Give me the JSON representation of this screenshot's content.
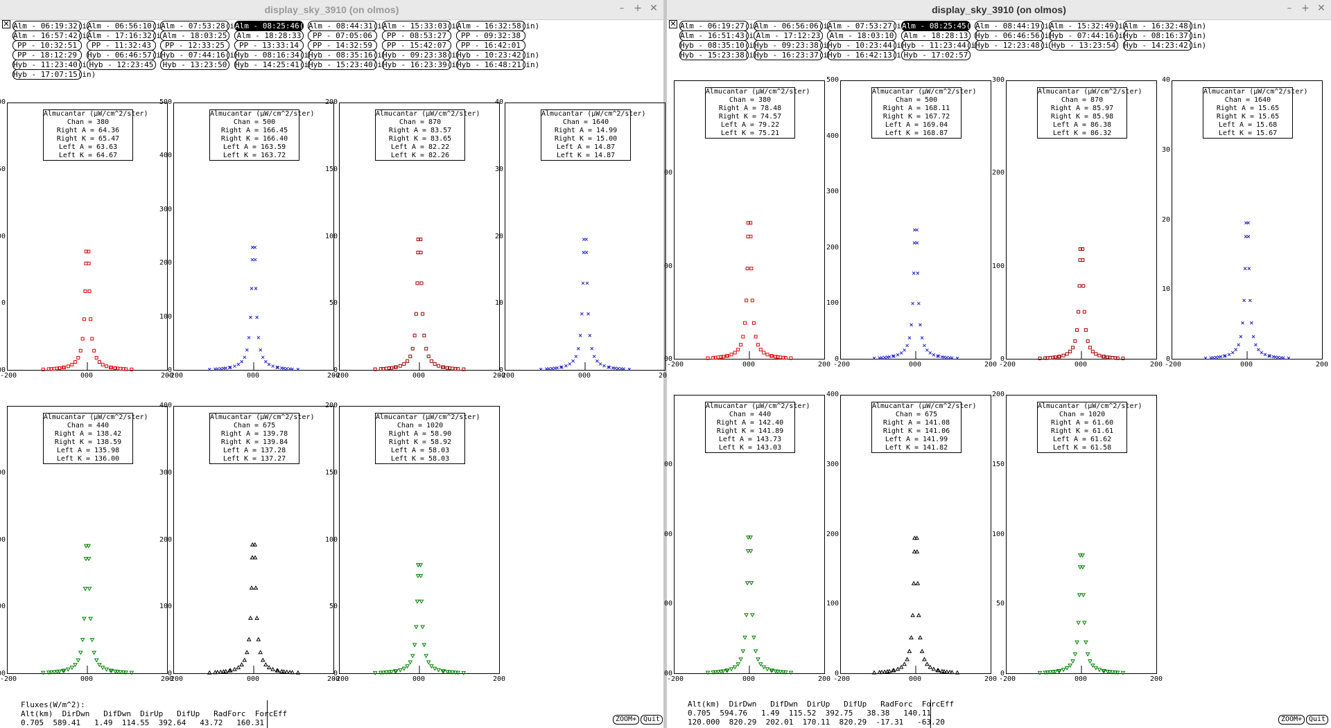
{
  "windows": [
    {
      "id": "left",
      "title": "display_sky_3910 (on olmos)",
      "buttons": [
        {
          "label": "Alm - 06:19:32(in)",
          "selected": false
        },
        {
          "label": "Alm - 06:56:10(in)",
          "selected": false
        },
        {
          "label": "Alm - 07:53:28(in)",
          "selected": false
        },
        {
          "label": "Alm - 08:25:46(in)",
          "selected": true
        },
        {
          "label": "Alm - 08:44:31(in)",
          "selected": false
        },
        {
          "label": "Alm - 15:33:03(in)",
          "selected": false
        },
        {
          "label": "Alm - 16:32:58(in)",
          "selected": false
        },
        {
          "label": "Alm - 16:57:42(in)",
          "selected": false
        },
        {
          "label": "Alm - 17:16:32(in)",
          "selected": false
        },
        {
          "label": "Alm - 18:03:25",
          "selected": false
        },
        {
          "label": "Alm - 18:28:33",
          "selected": false
        },
        {
          "label": "PP - 07:05:06",
          "selected": false
        },
        {
          "label": "PP - 08:53:27",
          "selected": false
        },
        {
          "label": "PP - 09:32:38",
          "selected": false
        },
        {
          "label": "PP - 10:32:51",
          "selected": false
        },
        {
          "label": "PP - 11:32:43",
          "selected": false
        },
        {
          "label": "PP - 12:33:25",
          "selected": false
        },
        {
          "label": "PP - 13:33:14",
          "selected": false
        },
        {
          "label": "PP - 14:32:59",
          "selected": false
        },
        {
          "label": "PP - 15:42:07",
          "selected": false
        },
        {
          "label": "PP - 16:42:01",
          "selected": false
        },
        {
          "label": "PP - 18:12:29",
          "selected": false
        },
        {
          "label": "Hyb - 06:46:57(in)",
          "selected": false
        },
        {
          "label": "Hyb - 07:44:16(in)",
          "selected": false
        },
        {
          "label": "Hyb - 08:16:34(in)",
          "selected": false
        },
        {
          "label": "Hyb - 08:35:16(in)",
          "selected": false
        },
        {
          "label": "Hyb - 09:23:38(in)",
          "selected": false
        },
        {
          "label": "Hyb - 10:23:42(in)",
          "selected": false
        },
        {
          "label": "Hyb - 11:23:40(in)",
          "selected": false
        },
        {
          "label": "Hyb - 12:23:45",
          "selected": false
        },
        {
          "label": "Hyb - 13:23:50",
          "selected": false
        },
        {
          "label": "Hyb - 14:25:41(in)",
          "selected": false
        },
        {
          "label": "Hyb - 15:23:40(in)",
          "selected": false
        },
        {
          "label": "Hyb - 16:23:39(in)",
          "selected": false
        },
        {
          "label": "Hyb - 16:48:21(in)",
          "selected": false
        },
        {
          "label": "Hyb - 17:07:15(in)",
          "selected": false
        }
      ],
      "plots": [
        {
          "chan": "380",
          "right_a": "64.36",
          "right_k": "65.47",
          "left_a": "63.63",
          "left_k": "64.67",
          "color": "#e00000",
          "marker": "square",
          "yticks": [
            {
              "v": 0,
              "t": "00"
            },
            {
              "v": 50,
              "t": "0"
            },
            {
              "v": 100,
              "t": "00"
            },
            {
              "v": 150,
              "t": "50"
            },
            {
              "v": 200,
              "t": "200"
            }
          ],
          "ymax": 200
        },
        {
          "chan": "500",
          "right_a": "166.45",
          "right_k": "166.40",
          "left_a": "163.59",
          "left_k": "163.72",
          "color": "#2020d0",
          "marker": "x",
          "yticks": [
            {
              "v": 0,
              "t": "0"
            },
            {
              "v": 100,
              "t": "100"
            },
            {
              "v": 200,
              "t": "200"
            },
            {
              "v": 300,
              "t": "300"
            },
            {
              "v": 400,
              "t": "400"
            },
            {
              "v": 500,
              "t": "500"
            }
          ],
          "ymax": 500
        },
        {
          "chan": "870",
          "right_a": "83.57",
          "right_k": "83.65",
          "left_a": "82.22",
          "left_k": "82.26",
          "color": "#a00000",
          "marker": "square",
          "yticks": [
            {
              "v": 0,
              "t": "0"
            },
            {
              "v": 50,
              "t": "50"
            },
            {
              "v": 100,
              "t": "100"
            },
            {
              "v": 150,
              "t": "150"
            },
            {
              "v": 200,
              "t": "200"
            }
          ],
          "ymax": 200
        },
        {
          "chan": "1640",
          "right_a": "14.99",
          "right_k": "15.00",
          "left_a": "14.87",
          "left_k": "14.87",
          "color": "#2020d0",
          "marker": "x",
          "yticks": [
            {
              "v": 0,
              "t": "0"
            },
            {
              "v": 10,
              "t": "10"
            },
            {
              "v": 20,
              "t": "20"
            },
            {
              "v": 30,
              "t": "30"
            },
            {
              "v": 40,
              "t": "40"
            }
          ],
          "ymax": 40
        },
        {
          "chan": "440",
          "right_a": "138.42",
          "right_k": "138.59",
          "left_a": "135.98",
          "left_k": "136.00",
          "color": "#008000",
          "marker": "tridown",
          "yticks": [
            {
              "v": 0,
              "t": "00"
            },
            {
              "v": 100,
              "t": "00"
            },
            {
              "v": 200,
              "t": "00"
            },
            {
              "v": 300,
              "t": "00"
            }
          ],
          "ymax": 400
        },
        {
          "chan": "675",
          "right_a": "139.78",
          "right_k": "139.84",
          "left_a": "137.28",
          "left_k": "137.27",
          "color": "#000000",
          "marker": "triup",
          "yticks": [
            {
              "v": 0,
              "t": "0"
            },
            {
              "v": 100,
              "t": "100"
            },
            {
              "v": 200,
              "t": "200"
            },
            {
              "v": 300,
              "t": "300"
            },
            {
              "v": 400,
              "t": "400"
            }
          ],
          "ymax": 400
        },
        {
          "chan": "1020",
          "right_a": "58.90",
          "right_k": "58.92",
          "left_a": "58.03",
          "left_k": "58.03",
          "color": "#008000",
          "marker": "tridown",
          "yticks": [
            {
              "v": 0,
              "t": "0"
            },
            {
              "v": 50,
              "t": "50"
            },
            {
              "v": 100,
              "t": "100"
            },
            {
              "v": 150,
              "t": "150"
            },
            {
              "v": 200,
              "t": "200"
            }
          ],
          "ymax": 200
        }
      ],
      "flux_text": "Fluxes(W/m^2):\nAlt(km)  DirDwn   DifDwn  DirUp   DifUp   RadForc  ForcEff\n0.705  589.41   1.49  114.55  392.64   43.72   160.31"
    },
    {
      "id": "right",
      "title": "display_sky_3910 (on olmos)",
      "buttons": [
        {
          "label": "Alm - 06:19:27(in)",
          "selected": false
        },
        {
          "label": "Alm - 06:56:06(in)",
          "selected": false
        },
        {
          "label": "Alm - 07:53:27(in)",
          "selected": false
        },
        {
          "label": "Alm - 08:25:45(in)",
          "selected": true
        },
        {
          "label": "Alm - 08:44:19(in)",
          "selected": false
        },
        {
          "label": "Alm - 15:32:49(in)",
          "selected": false
        },
        {
          "label": "Alm - 16:32:48(in)",
          "selected": false
        },
        {
          "label": "Alm - 16:51:43(in)",
          "selected": false
        },
        {
          "label": "Alm - 17:12:23",
          "selected": false
        },
        {
          "label": "Alm - 18:03:10",
          "selected": false
        },
        {
          "label": "Alm - 18:28:13",
          "selected": false
        },
        {
          "label": "Hyb - 06:46:56(in)",
          "selected": false
        },
        {
          "label": "Hyb - 07:44:16(in)",
          "selected": false
        },
        {
          "label": "Hyb - 08:16:37(in)",
          "selected": false
        },
        {
          "label": "Hyb - 08:35:10(in)",
          "selected": false
        },
        {
          "label": "Hyb - 09:23:38(in)",
          "selected": false
        },
        {
          "label": "Hyb - 10:23:44(in)",
          "selected": false
        },
        {
          "label": "Hyb - 11:23:44(in)",
          "selected": false
        },
        {
          "label": "Hyb - 12:23:48(in)",
          "selected": false
        },
        {
          "label": "Hyb - 13:23:54",
          "selected": false
        },
        {
          "label": "Hyb - 14:23:42(in)",
          "selected": false
        },
        {
          "label": "Hyb - 15:23:38(in)",
          "selected": false
        },
        {
          "label": "Hyb - 16:23:37(in)",
          "selected": false
        },
        {
          "label": "Hyb - 16:42:13(in)",
          "selected": false
        },
        {
          "label": "Hyb - 17:02:57",
          "selected": false
        }
      ],
      "plots": [
        {
          "chan": "380",
          "right_a": "78.48",
          "right_k": "74.57",
          "left_a": "79.22",
          "left_k": "75.21",
          "color": "#e00000",
          "marker": "square",
          "yticks": [
            {
              "v": 0,
              "t": "00"
            },
            {
              "v": 50,
              "t": "00"
            },
            {
              "v": 100,
              "t": "00"
            }
          ],
          "ymax": 150
        },
        {
          "chan": "500",
          "right_a": "168.11",
          "right_k": "167.72",
          "left_a": "169.04",
          "left_k": "168.87",
          "color": "#2020d0",
          "marker": "x",
          "yticks": [
            {
              "v": 0,
              "t": "0"
            },
            {
              "v": 100,
              "t": "100"
            },
            {
              "v": 200,
              "t": "200"
            },
            {
              "v": 300,
              "t": "300"
            },
            {
              "v": 400,
              "t": "400"
            },
            {
              "v": 500,
              "t": "500"
            }
          ],
          "ymax": 500
        },
        {
          "chan": "870",
          "right_a": "85.97",
          "right_k": "85.98",
          "left_a": "86.38",
          "left_k": "86.32",
          "color": "#a00000",
          "marker": "square",
          "yticks": [
            {
              "v": 0,
              "t": "0"
            },
            {
              "v": 100,
              "t": "100"
            },
            {
              "v": 200,
              "t": "200"
            },
            {
              "v": 300,
              "t": "300"
            }
          ],
          "ymax": 300
        },
        {
          "chan": "1640",
          "right_a": "15.65",
          "right_k": "15.65",
          "left_a": "15.68",
          "left_k": "15.67",
          "color": "#2020d0",
          "marker": "x",
          "yticks": [
            {
              "v": 0,
              "t": "0"
            },
            {
              "v": 10,
              "t": "10"
            },
            {
              "v": 20,
              "t": "20"
            },
            {
              "v": 30,
              "t": "30"
            },
            {
              "v": 40,
              "t": "40"
            }
          ],
          "ymax": 40
        },
        {
          "chan": "440",
          "right_a": "142.40",
          "right_k": "141.89",
          "left_a": "143.73",
          "left_k": "143.03",
          "color": "#008000",
          "marker": "tridown",
          "yticks": [
            {
              "v": 0,
              "t": "00"
            },
            {
              "v": 100,
              "t": "00"
            },
            {
              "v": 200,
              "t": "00"
            },
            {
              "v": 300,
              "t": "00"
            }
          ],
          "ymax": 400
        },
        {
          "chan": "675",
          "right_a": "141.08",
          "right_k": "141.06",
          "left_a": "141.99",
          "left_k": "141.82",
          "color": "#000000",
          "marker": "triup",
          "yticks": [
            {
              "v": 0,
              "t": "0"
            },
            {
              "v": 100,
              "t": "100"
            },
            {
              "v": 200,
              "t": "200"
            },
            {
              "v": 300,
              "t": "300"
            },
            {
              "v": 400,
              "t": "400"
            }
          ],
          "ymax": 400
        },
        {
          "chan": "1020",
          "right_a": "61.60",
          "right_k": "61.61",
          "left_a": "61.62",
          "left_k": "61.58",
          "color": "#008000",
          "marker": "tridown",
          "yticks": [
            {
              "v": 0,
              "t": "0"
            },
            {
              "v": 50,
              "t": "50"
            },
            {
              "v": 100,
              "t": "100"
            },
            {
              "v": 150,
              "t": "150"
            },
            {
              "v": 200,
              "t": "200"
            }
          ],
          "ymax": 200
        }
      ],
      "flux_text": "Alt(km)  DirDwn   DifDwn  DirUp   DifUp   RadForc  ForcEff\n0.705  594.76   1.49  115.52  392.75   38.38   140.11\n120.000  820.29  202.01  170.11  820.29  -17.31   -63.20"
    }
  ],
  "plot_common": {
    "legend_title": "Almucantar (µW/cm^2/ster)",
    "chan_prefix": "Chan = ",
    "right_a_prefix": "Right A = ",
    "right_k_prefix": "Right K = ",
    "left_a_prefix": "Left A = ",
    "left_k_prefix": "Left K = ",
    "xticks": [
      {
        "v": -200,
        "t": "-200"
      },
      {
        "v": 0,
        "t": "000"
      },
      {
        "v": 200,
        "t": "200"
      }
    ],
    "xlim": [
      -200,
      200
    ]
  },
  "zoom_label": "ZOOM+",
  "quit_label": "Quit",
  "close_glyph": "✕",
  "min_glyph": "–",
  "max_glyph": "+",
  "corner_glyph": "✕"
}
